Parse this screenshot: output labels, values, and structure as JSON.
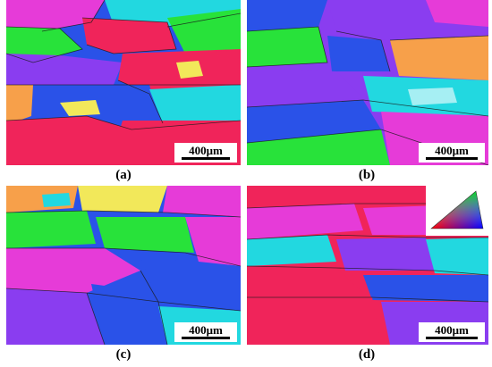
{
  "figure": {
    "panels": [
      {
        "caption": "(a)",
        "scale_label": "400μm"
      },
      {
        "caption": "(b)",
        "scale_label": "400μm"
      },
      {
        "caption": "(c)",
        "scale_label": "400μm"
      },
      {
        "caption": "(d)",
        "scale_label": "400μm"
      }
    ],
    "colors": {
      "red": "#f0245a",
      "blue": "#2a52e8",
      "green": "#28e23a",
      "purple": "#8a3df0",
      "magenta": "#e63bd8",
      "cyan": "#22d8e0",
      "yellow": "#f2e85a",
      "orange": "#f7a04a",
      "boundary": "#1a1a1a"
    }
  }
}
